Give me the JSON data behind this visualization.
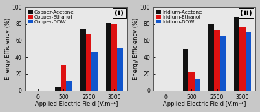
{
  "chart_i": {
    "title": "(i)",
    "legend_labels": [
      "Copper-Acetone",
      "Copper-Ethanol",
      "Copper-DDW"
    ],
    "x_labels": [
      "0",
      "500",
      "2500",
      "3000"
    ],
    "values": {
      "black": [
        0,
        5,
        74,
        81
      ],
      "red": [
        0,
        30,
        68,
        80
      ],
      "blue": [
        0,
        11,
        46,
        51
      ]
    },
    "bar_colors": [
      "#111111",
      "#dd1111",
      "#1155cc"
    ],
    "xlabel": "Applied Electric Field [V.m⁻¹]",
    "ylabel": "Energy Efficiency (%)",
    "ylim": [
      0,
      100
    ],
    "yticks": [
      0,
      20,
      40,
      60,
      80,
      100
    ]
  },
  "chart_ii": {
    "title": "(ii)",
    "legend_labels": [
      "Iridium-Acetone",
      "Iridium-Ethanol",
      "Iridium-DOW"
    ],
    "x_labels": [
      "0",
      "500",
      "2500",
      "3000"
    ],
    "values": {
      "black": [
        0,
        50,
        80,
        88
      ],
      "red": [
        0,
        22,
        73,
        76
      ],
      "blue": [
        0,
        14,
        65,
        71
      ]
    },
    "bar_colors": [
      "#111111",
      "#dd1111",
      "#1155cc"
    ],
    "xlabel": "Applied Electric Field [V.m⁻¹]",
    "ylabel": "Energy Efficiency (%)",
    "ylim": [
      0,
      100
    ],
    "yticks": [
      0,
      20,
      40,
      60,
      80,
      100
    ]
  },
  "fig_facecolor": "#c8c8c8",
  "ax_facecolor": "#e8e8e8",
  "bar_width": 0.22,
  "group_positions": [
    0,
    1,
    2,
    3
  ],
  "title_fontsize": 8,
  "label_fontsize": 6,
  "tick_fontsize": 5.5,
  "legend_fontsize": 5.2
}
